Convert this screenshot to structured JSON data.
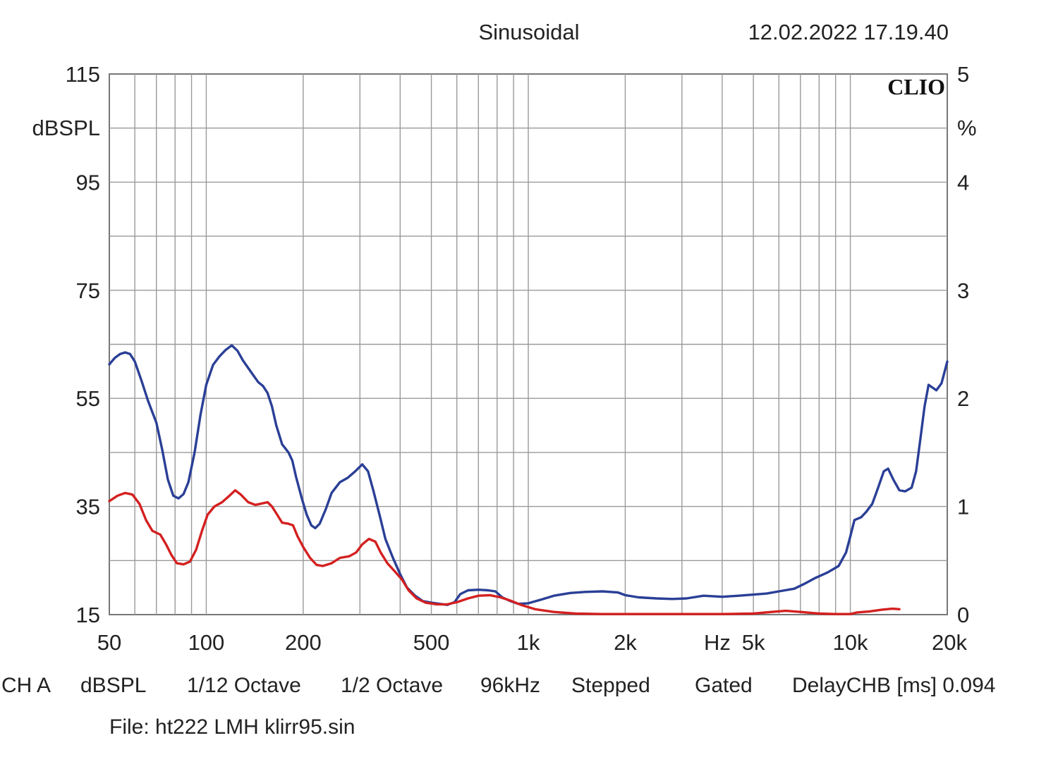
{
  "header": {
    "mode": "Sinusoidal",
    "datetime": "12.02.2022 17.19.40",
    "logo": "CLIO"
  },
  "footer": {
    "channel": "CH A",
    "unit": "dBSPL",
    "smoothing": "1/12 Octave",
    "resolution": "1/2 Octave",
    "sample_rate": "96kHz",
    "sweep": "Stepped",
    "gating": "Gated",
    "delay_label": "DelayCHB [ms] 0.094",
    "file": "File: ht222 LMH klirr95.sin"
  },
  "chart_data": {
    "type": "line",
    "xscale": "log",
    "xlim": [
      50,
      20000
    ],
    "ylim": [
      15,
      115
    ],
    "y2lim": [
      0,
      5
    ],
    "ylabel": "dBSPL",
    "y2label": "%",
    "xunit": "Hz",
    "grid": true,
    "x_ticks": [
      {
        "value": 50,
        "label": "50"
      },
      {
        "value": 100,
        "label": "100"
      },
      {
        "value": 200,
        "label": "200"
      },
      {
        "value": 500,
        "label": "500"
      },
      {
        "value": 1000,
        "label": "1k"
      },
      {
        "value": 2000,
        "label": "2k"
      },
      {
        "value": 5000,
        "label": "5k"
      },
      {
        "value": 10000,
        "label": "10k"
      },
      {
        "value": 20000,
        "label": "20k"
      }
    ],
    "y_ticks": [
      {
        "value": 115,
        "label": "115"
      },
      {
        "value": 95,
        "label": "95"
      },
      {
        "value": 75,
        "label": "75"
      },
      {
        "value": 55,
        "label": "55"
      },
      {
        "value": 35,
        "label": "35"
      },
      {
        "value": 15,
        "label": "15"
      }
    ],
    "y2_ticks": [
      {
        "value": 5,
        "label": "5"
      },
      {
        "value": 4,
        "label": "4"
      },
      {
        "value": 3,
        "label": "3"
      },
      {
        "value": 2,
        "label": "2"
      },
      {
        "value": 1,
        "label": "1"
      },
      {
        "value": 0,
        "label": "0"
      }
    ],
    "series": [
      {
        "color": "#2a3f96",
        "axis": "left",
        "points": [
          [
            50,
            61.3
          ],
          [
            52,
            62.5
          ],
          [
            54,
            63.2
          ],
          [
            56,
            63.5
          ],
          [
            58,
            63.2
          ],
          [
            60,
            61.8
          ],
          [
            63,
            58.2
          ],
          [
            66,
            54.5
          ],
          [
            70,
            50.5
          ],
          [
            73,
            45.5
          ],
          [
            76,
            40.0
          ],
          [
            79,
            37.0
          ],
          [
            82,
            36.5
          ],
          [
            85,
            37.3
          ],
          [
            88,
            39.5
          ],
          [
            92,
            45.0
          ],
          [
            96,
            52.0
          ],
          [
            100,
            57.5
          ],
          [
            105,
            61.2
          ],
          [
            110,
            62.8
          ],
          [
            115,
            64.0
          ],
          [
            120,
            64.8
          ],
          [
            125,
            63.8
          ],
          [
            130,
            62.0
          ],
          [
            138,
            59.8
          ],
          [
            145,
            58.0
          ],
          [
            150,
            57.3
          ],
          [
            155,
            56.0
          ],
          [
            160,
            53.5
          ],
          [
            165,
            50.0
          ],
          [
            172,
            46.5
          ],
          [
            180,
            45.0
          ],
          [
            185,
            43.5
          ],
          [
            190,
            40.5
          ],
          [
            198,
            36.5
          ],
          [
            205,
            33.5
          ],
          [
            212,
            31.5
          ],
          [
            218,
            31.0
          ],
          [
            225,
            31.8
          ],
          [
            235,
            34.5
          ],
          [
            245,
            37.5
          ],
          [
            260,
            39.5
          ],
          [
            275,
            40.3
          ],
          [
            290,
            41.5
          ],
          [
            305,
            42.8
          ],
          [
            318,
            41.5
          ],
          [
            330,
            38.0
          ],
          [
            345,
            33.5
          ],
          [
            360,
            29.0
          ],
          [
            380,
            25.5
          ],
          [
            400,
            22.5
          ],
          [
            420,
            20.0
          ],
          [
            445,
            18.5
          ],
          [
            470,
            17.5
          ],
          [
            500,
            17.2
          ],
          [
            530,
            17.0
          ],
          [
            560,
            16.8
          ],
          [
            590,
            17.3
          ],
          [
            615,
            18.8
          ],
          [
            650,
            19.5
          ],
          [
            700,
            19.6
          ],
          [
            750,
            19.5
          ],
          [
            790,
            19.3
          ],
          [
            830,
            18.2
          ],
          [
            880,
            17.5
          ],
          [
            930,
            17.0
          ],
          [
            1000,
            17.1
          ],
          [
            1100,
            17.8
          ],
          [
            1200,
            18.5
          ],
          [
            1350,
            19.0
          ],
          [
            1500,
            19.2
          ],
          [
            1700,
            19.3
          ],
          [
            1900,
            19.1
          ],
          [
            2000,
            18.6
          ],
          [
            2200,
            18.2
          ],
          [
            2500,
            18.0
          ],
          [
            2800,
            17.9
          ],
          [
            3100,
            18.0
          ],
          [
            3500,
            18.5
          ],
          [
            4000,
            18.3
          ],
          [
            4500,
            18.5
          ],
          [
            5000,
            18.7
          ],
          [
            5500,
            18.9
          ],
          [
            6000,
            19.3
          ],
          [
            6700,
            19.8
          ],
          [
            7200,
            20.7
          ],
          [
            7800,
            21.8
          ],
          [
            8500,
            22.8
          ],
          [
            9200,
            24.0
          ],
          [
            9700,
            26.5
          ],
          [
            10000,
            29.5
          ],
          [
            10300,
            32.5
          ],
          [
            10800,
            33.0
          ],
          [
            11200,
            34.0
          ],
          [
            11700,
            35.5
          ],
          [
            12200,
            38.5
          ],
          [
            12700,
            41.5
          ],
          [
            13100,
            42.0
          ],
          [
            13600,
            40.0
          ],
          [
            14200,
            38.0
          ],
          [
            14800,
            37.8
          ],
          [
            15500,
            38.5
          ],
          [
            16000,
            41.5
          ],
          [
            16500,
            47.5
          ],
          [
            17000,
            53.5
          ],
          [
            17500,
            57.5
          ],
          [
            18000,
            57.0
          ],
          [
            18500,
            56.5
          ],
          [
            19200,
            57.8
          ],
          [
            20000,
            61.8
          ]
        ]
      },
      {
        "color": "#d42020",
        "axis": "left",
        "points": [
          [
            50,
            36.0
          ],
          [
            53,
            37.0
          ],
          [
            56,
            37.5
          ],
          [
            59,
            37.2
          ],
          [
            62,
            35.5
          ],
          [
            65,
            32.5
          ],
          [
            68,
            30.5
          ],
          [
            72,
            29.8
          ],
          [
            75,
            28.0
          ],
          [
            78,
            26.0
          ],
          [
            81,
            24.5
          ],
          [
            85,
            24.3
          ],
          [
            89,
            24.8
          ],
          [
            93,
            27.0
          ],
          [
            97,
            30.5
          ],
          [
            101,
            33.5
          ],
          [
            106,
            35.0
          ],
          [
            112,
            35.8
          ],
          [
            118,
            37.0
          ],
          [
            123,
            38.0
          ],
          [
            128,
            37.2
          ],
          [
            135,
            35.8
          ],
          [
            142,
            35.3
          ],
          [
            150,
            35.6
          ],
          [
            155,
            35.8
          ],
          [
            160,
            35.0
          ],
          [
            166,
            33.5
          ],
          [
            172,
            32.0
          ],
          [
            180,
            31.8
          ],
          [
            186,
            31.5
          ],
          [
            192,
            29.5
          ],
          [
            200,
            27.5
          ],
          [
            210,
            25.5
          ],
          [
            220,
            24.2
          ],
          [
            230,
            24.0
          ],
          [
            245,
            24.5
          ],
          [
            260,
            25.5
          ],
          [
            278,
            25.8
          ],
          [
            292,
            26.5
          ],
          [
            305,
            28.0
          ],
          [
            320,
            29.0
          ],
          [
            335,
            28.5
          ],
          [
            348,
            26.5
          ],
          [
            365,
            24.5
          ],
          [
            385,
            23.0
          ],
          [
            405,
            21.5
          ],
          [
            425,
            19.5
          ],
          [
            450,
            18.0
          ],
          [
            480,
            17.2
          ],
          [
            520,
            16.9
          ],
          [
            560,
            16.9
          ],
          [
            600,
            17.3
          ],
          [
            650,
            18.0
          ],
          [
            700,
            18.5
          ],
          [
            760,
            18.6
          ],
          [
            820,
            18.2
          ],
          [
            880,
            17.6
          ],
          [
            950,
            16.8
          ],
          [
            1050,
            16.0
          ],
          [
            1200,
            15.5
          ],
          [
            1400,
            15.2
          ],
          [
            1700,
            15.1
          ],
          [
            2000,
            15.1
          ],
          [
            2500,
            15.1
          ],
          [
            3000,
            15.1
          ],
          [
            4000,
            15.1
          ],
          [
            5000,
            15.2
          ],
          [
            5700,
            15.5
          ],
          [
            6300,
            15.7
          ],
          [
            7000,
            15.5
          ],
          [
            8000,
            15.2
          ],
          [
            9000,
            15.1
          ],
          [
            10000,
            15.1
          ],
          [
            10500,
            15.4
          ],
          [
            11500,
            15.6
          ],
          [
            12500,
            15.9
          ],
          [
            13500,
            16.1
          ],
          [
            14200,
            16.0
          ]
        ]
      }
    ]
  }
}
